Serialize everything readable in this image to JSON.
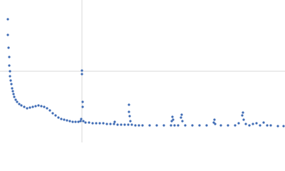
{
  "chart_data": {
    "type": "scatter",
    "color": "#3f6cb5",
    "xlim": [
      0,
      400
    ],
    "ylim": [
      0,
      200
    ],
    "xgrid": [
      115
    ],
    "ygrid": [
      100
    ],
    "x": [
      11,
      11,
      12,
      13,
      13,
      14,
      14,
      15,
      16,
      17,
      18,
      19,
      20,
      22,
      24,
      27,
      30,
      34,
      38,
      42,
      46,
      50,
      54,
      58,
      62,
      66,
      70,
      74,
      78,
      82,
      86,
      90,
      94,
      98,
      102,
      106,
      110,
      113,
      114,
      115,
      115,
      116,
      116,
      117,
      120,
      125,
      130,
      135,
      140,
      145,
      150,
      155,
      160,
      161,
      165,
      170,
      175,
      180,
      181,
      181,
      182,
      183,
      185,
      190,
      195,
      200,
      210,
      220,
      230,
      240,
      241,
      242,
      243,
      245,
      250,
      254,
      255,
      256,
      260,
      270,
      280,
      290,
      300,
      301,
      302,
      310,
      320,
      330,
      335,
      340,
      341,
      342,
      345,
      350,
      355,
      360,
      365,
      370,
      375,
      380,
      390,
      398
    ],
    "values": [
      173,
      151,
      133,
      120,
      108,
      100,
      93,
      87,
      82,
      76,
      72,
      68,
      64,
      60,
      57,
      54,
      52,
      50,
      48,
      49,
      50,
      51,
      52,
      51,
      50,
      48,
      45,
      41,
      38,
      35,
      33,
      32,
      31,
      30,
      29,
      29,
      29,
      30,
      33,
      101,
      96,
      57,
      50,
      30,
      28,
      28,
      27,
      27,
      27,
      27,
      26,
      26,
      26,
      29,
      25,
      25,
      25,
      25,
      53,
      43,
      37,
      30,
      25,
      24,
      24,
      24,
      24,
      24,
      24,
      24,
      30,
      36,
      32,
      24,
      24,
      35,
      39,
      30,
      24,
      24,
      24,
      24,
      28,
      32,
      26,
      24,
      24,
      24,
      27,
      38,
      42,
      32,
      26,
      24,
      26,
      27,
      24,
      28,
      24,
      24,
      23,
      23
    ]
  }
}
